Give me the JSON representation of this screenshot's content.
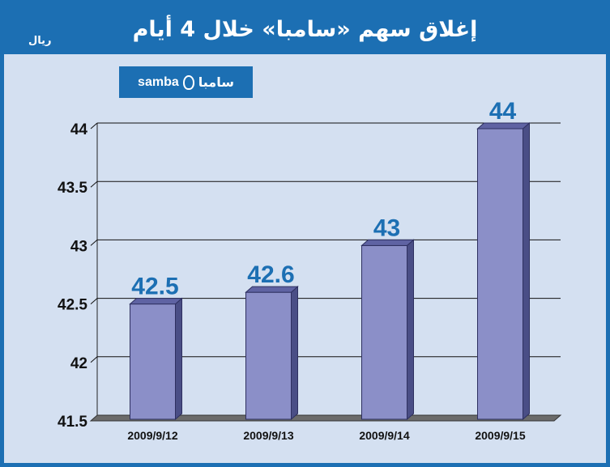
{
  "header": {
    "title": "إغلاق سهم «سامبا» خلال 4 أيام",
    "unit": "ريال"
  },
  "logo": {
    "latin": "samba",
    "arabic": "سامبا"
  },
  "colors": {
    "brand": "#1c6fb3",
    "background": "#d4e0f1",
    "bar_front": "#8b8fc8",
    "bar_side": "#4a4e86",
    "bar_top": "#5f63a3"
  },
  "chart_data": {
    "type": "bar",
    "categories": [
      "2009/9/12",
      "2009/9/13",
      "2009/9/14",
      "2009/9/15"
    ],
    "values": [
      42.5,
      42.6,
      43,
      44
    ],
    "value_labels": [
      "42.5",
      "42.6",
      "43",
      "44"
    ],
    "title": "إغلاق سهم «سامبا» خلال 4 أيام",
    "ylabel": "ريال",
    "xlabel": "",
    "ylim": [
      41.5,
      44
    ],
    "yticks": [
      41.5,
      42,
      42.5,
      43,
      43.5,
      44
    ],
    "ytick_labels": [
      "41.5",
      "42",
      "42.5",
      "43",
      "43.5",
      "44"
    ],
    "grid": true
  }
}
